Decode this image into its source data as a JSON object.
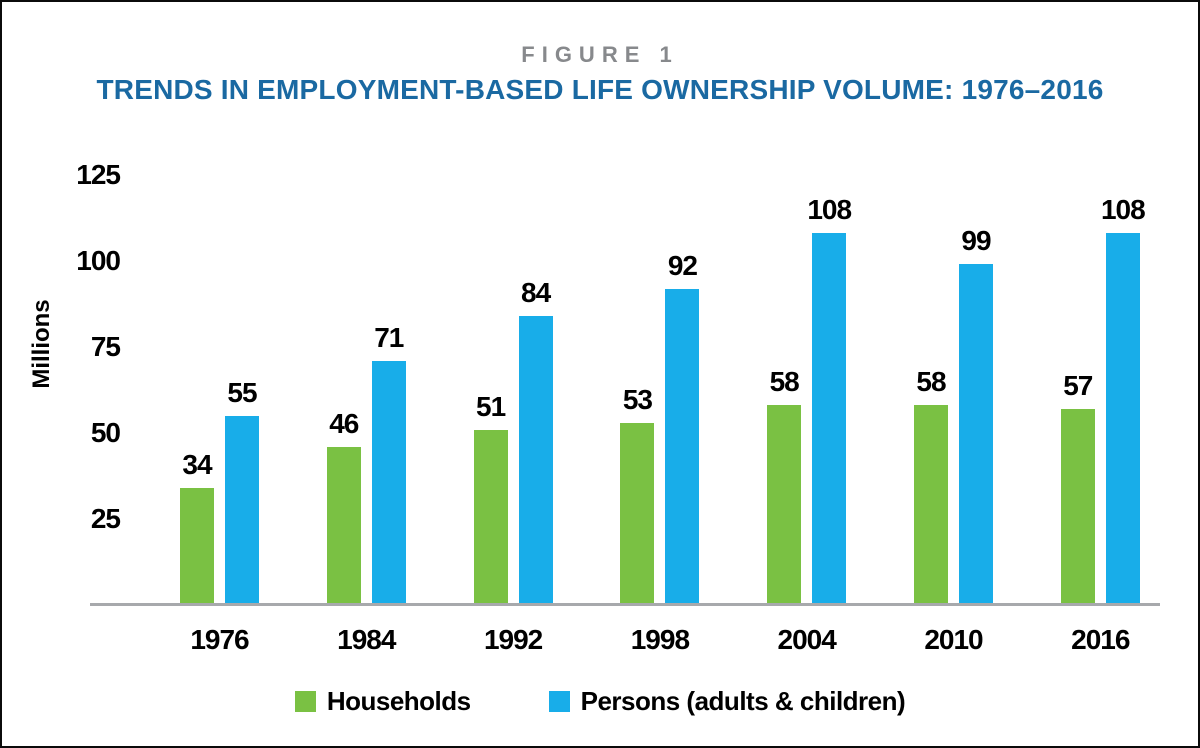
{
  "figure_label": "FIGURE 1",
  "title": "TRENDS IN EMPLOYMENT-BASED LIFE OWNERSHIP VOLUME: 1976–2016",
  "colors": {
    "households_green": "#7AC143",
    "persons_blue": "#18ADE9",
    "title_blue": "#1A69A2",
    "figure_label_gray": "#87898C",
    "axis_line_gray": "#A7A9AC",
    "value_text": "#000000"
  },
  "chart_data": {
    "type": "bar",
    "categories": [
      "1976",
      "1984",
      "1992",
      "1998",
      "2004",
      "2010",
      "2016"
    ],
    "series": [
      {
        "name": "Households",
        "color_key": "households_green",
        "values": [
          34,
          46,
          51,
          53,
          58,
          58,
          57
        ]
      },
      {
        "name": "Persons (adults & children)",
        "color_key": "persons_blue",
        "values": [
          55,
          71,
          84,
          92,
          108,
          99,
          108
        ]
      }
    ],
    "ylabel": "Millions",
    "xlabel": "",
    "yticks": [
      25,
      50,
      75,
      100,
      125
    ],
    "ylim": [
      0,
      125
    ],
    "grid": false,
    "legend_position": "bottom",
    "value_labels": true
  }
}
